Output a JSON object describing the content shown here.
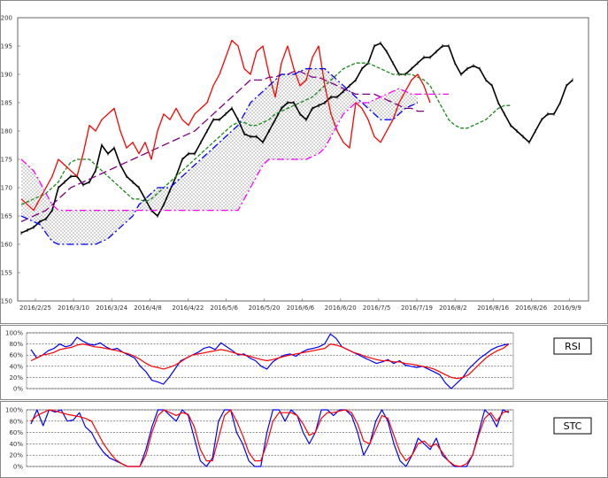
{
  "chart_data": [
    {
      "type": "line",
      "name": "ichimoku",
      "x_ticks": [
        "2016/2/25",
        "2016/3/10",
        "2016/3/24",
        "2016/4/8",
        "2016/4/22",
        "2016/5/6",
        "2016/5/20",
        "2016/6/6",
        "2016/6/20",
        "2016/7/5",
        "2016/7/19",
        "2016/8/2",
        "2016/8/16",
        "2016/8/26",
        "2016/9/9"
      ],
      "y_ticks": [
        "150",
        "155",
        "160",
        "165",
        "170",
        "175",
        "180",
        "185",
        "190",
        "195",
        "200"
      ],
      "ylim": [
        150,
        200
      ],
      "n_points": 90,
      "series": [
        {
          "key": "price",
          "color": "#000000",
          "style": "solid-markers",
          "values": [
            162,
            162.5,
            163,
            164,
            164.5,
            166,
            170,
            171,
            172,
            172,
            170.5,
            171,
            173,
            177.5,
            176,
            177,
            174,
            172,
            171,
            170,
            168,
            166,
            165,
            167,
            169.5,
            172,
            175,
            176,
            176,
            178,
            180,
            182,
            182,
            183,
            184,
            182,
            179.5,
            179,
            179,
            178,
            180,
            182,
            184,
            185,
            185,
            183,
            182,
            184,
            184.5,
            185,
            186,
            186,
            187,
            188,
            189,
            191,
            192,
            195,
            195.5,
            194,
            192,
            190,
            190,
            191,
            192,
            193,
            193,
            194,
            195,
            195,
            192,
            190,
            191,
            191.5,
            191,
            189,
            188,
            185,
            183,
            181,
            180,
            179,
            178,
            180,
            182,
            183,
            183,
            185,
            188,
            189
          ]
        },
        {
          "key": "tenkan",
          "color": "#1a8a1a",
          "style": "dashed",
          "values": [
            167,
            167.5,
            168,
            168.5,
            169,
            170,
            171,
            173,
            174.5,
            175,
            175,
            175,
            174,
            173,
            172,
            171,
            170,
            169,
            168,
            168,
            167.5,
            168,
            169,
            170,
            171,
            172,
            173,
            174,
            175,
            176,
            177,
            178,
            179,
            180,
            181,
            181.5,
            181.5,
            181,
            181,
            181.5,
            182,
            183,
            183.5,
            184,
            184.5,
            185,
            185.5,
            186,
            187,
            188,
            189,
            190,
            191,
            191.5,
            192,
            192,
            192,
            191.5,
            191,
            190.5,
            190,
            190,
            190,
            190,
            189.5,
            189,
            188,
            186,
            184,
            182,
            181,
            180.5,
            180.5,
            181,
            181.5,
            182,
            183,
            184,
            184.5,
            184.5
          ]
        },
        {
          "key": "kijun",
          "color": "#800080",
          "style": "longdash",
          "values": [
            164,
            164.5,
            165,
            165.5,
            166,
            167,
            168,
            169,
            170,
            170.5,
            171,
            171.5,
            172,
            172.5,
            173,
            173.5,
            174,
            174.5,
            175,
            175.5,
            176,
            176.5,
            177,
            177.5,
            178,
            178.5,
            179,
            179.5,
            180,
            181,
            182,
            183,
            184,
            185,
            186,
            187,
            188,
            189,
            189,
            189,
            189.5,
            189.5,
            190,
            190,
            190.5,
            190.5,
            190,
            189.5,
            189.5,
            189,
            188.5,
            188,
            187.5,
            187,
            186.5,
            186.5,
            186.5,
            186.5,
            186,
            185.5,
            185,
            184.5,
            184,
            184,
            183.5,
            183.5
          ]
        },
        {
          "key": "chikou",
          "color": "#ff0000",
          "style": "solid",
          "values": [
            168,
            167,
            166,
            168,
            170,
            172,
            175,
            174,
            173,
            172,
            176,
            181,
            180,
            182,
            183,
            184,
            180,
            177,
            178,
            176,
            178,
            175,
            180,
            183,
            182,
            184,
            182,
            181,
            183,
            184,
            185,
            188,
            190,
            193,
            196,
            195,
            191,
            190,
            194,
            195,
            190,
            186,
            192,
            195,
            191,
            188,
            189,
            193,
            195,
            188,
            183,
            180,
            178,
            177,
            185,
            184,
            182,
            179,
            178,
            180,
            182,
            185,
            187,
            189,
            190,
            188,
            185
          ]
        },
        {
          "key": "spanA",
          "color": "#ff00ff",
          "style": "dashdot",
          "values": [
            175,
            174,
            173,
            171,
            169,
            167,
            166,
            166,
            166,
            166,
            166,
            166,
            166,
            166,
            166,
            166,
            166,
            166,
            166,
            166,
            166,
            166,
            166,
            166,
            166,
            166,
            166,
            166,
            166,
            166,
            166,
            166,
            166,
            166,
            166,
            166,
            168,
            170,
            172,
            174,
            175,
            175,
            175,
            175,
            175,
            175,
            175,
            175.5,
            176,
            177,
            179,
            181,
            183,
            184,
            185,
            185,
            185,
            185.5,
            186,
            186.5,
            187,
            187.5,
            187,
            186.5,
            186.5,
            186.5,
            186.5,
            186.5,
            186.5,
            186.5
          ]
        },
        {
          "key": "spanB",
          "color": "#0000ff",
          "style": "dashdot",
          "values": [
            165,
            164.5,
            164,
            163.5,
            162,
            160.5,
            160,
            160,
            160,
            160,
            160,
            160,
            160,
            160.5,
            161,
            162,
            163,
            164,
            165,
            167,
            168,
            169,
            170,
            170,
            170,
            171,
            172,
            173,
            174,
            175,
            176,
            177,
            178,
            179,
            180,
            181,
            183,
            185,
            186,
            187,
            188,
            189,
            190,
            190,
            190,
            190.5,
            191,
            191,
            191,
            191,
            190,
            189,
            188,
            187,
            186,
            185,
            184,
            183,
            182,
            182,
            182,
            183,
            184,
            184.5,
            185
          ]
        }
      ]
    },
    {
      "type": "line",
      "name": "rsi",
      "box_label": "RSI",
      "y_ticks": [
        "100%",
        "80%",
        "60%",
        "40%",
        "20%",
        "0%"
      ],
      "ylim": [
        0,
        100
      ],
      "series": [
        {
          "key": "rsi_blue",
          "color": "#0000ff",
          "values": [
            70,
            55,
            60,
            68,
            72,
            80,
            75,
            78,
            92,
            85,
            80,
            78,
            82,
            75,
            70,
            72,
            65,
            60,
            55,
            40,
            30,
            15,
            12,
            8,
            20,
            35,
            50,
            55,
            60,
            65,
            72,
            75,
            70,
            82,
            75,
            68,
            60,
            62,
            55,
            50,
            40,
            35,
            48,
            55,
            60,
            62,
            58,
            65,
            70,
            72,
            75,
            80,
            98,
            90,
            75,
            70,
            65,
            60,
            55,
            50,
            45,
            48,
            52,
            45,
            50,
            42,
            40,
            38,
            40,
            35,
            30,
            25,
            10,
            0,
            10,
            20,
            35,
            45,
            55,
            62,
            70,
            75,
            78,
            80
          ]
        },
        {
          "key": "rsi_red",
          "color": "#ff0000",
          "values": [
            50,
            55,
            60,
            62,
            65,
            70,
            72,
            74,
            78,
            80,
            78,
            75,
            74,
            72,
            70,
            68,
            65,
            62,
            58,
            52,
            45,
            40,
            38,
            35,
            38,
            42,
            48,
            55,
            60,
            62,
            64,
            66,
            68,
            70,
            68,
            65,
            62,
            60,
            58,
            55,
            52,
            50,
            52,
            55,
            58,
            60,
            62,
            64,
            66,
            68,
            70,
            72,
            80,
            78,
            75,
            70,
            65,
            62,
            58,
            55,
            52,
            50,
            50,
            48,
            48,
            45,
            44,
            42,
            40,
            38,
            35,
            30,
            25,
            20,
            18,
            20,
            25,
            35,
            45,
            55,
            62,
            68,
            72,
            80
          ]
        }
      ]
    },
    {
      "type": "line",
      "name": "stc",
      "box_label": "STC",
      "y_ticks": [
        "100%",
        "80%",
        "60%",
        "40%",
        "20%",
        "0%"
      ],
      "ylim": [
        0,
        100
      ],
      "series": [
        {
          "key": "stc_blue",
          "color": "#0000ff",
          "values": [
            75,
            100,
            72,
            100,
            96,
            100,
            80,
            82,
            95,
            70,
            60,
            40,
            25,
            15,
            10,
            5,
            0,
            0,
            0,
            30,
            70,
            100,
            100,
            90,
            80,
            100,
            90,
            50,
            10,
            0,
            15,
            80,
            100,
            100,
            60,
            40,
            10,
            0,
            0,
            60,
            100,
            100,
            80,
            100,
            90,
            60,
            40,
            60,
            100,
            100,
            90,
            100,
            100,
            90,
            60,
            20,
            40,
            80,
            100,
            80,
            40,
            10,
            0,
            20,
            50,
            40,
            30,
            50,
            20,
            10,
            0,
            0,
            0,
            20,
            60,
            100,
            90,
            70,
            100,
            95
          ]
        },
        {
          "key": "stc_red",
          "color": "#ff0000",
          "values": [
            80,
            90,
            95,
            100,
            98,
            95,
            92,
            90,
            88,
            85,
            80,
            60,
            40,
            25,
            12,
            5,
            0,
            0,
            0,
            20,
            60,
            90,
            100,
            95,
            90,
            95,
            92,
            70,
            30,
            10,
            10,
            50,
            90,
            100,
            80,
            55,
            25,
            10,
            10,
            40,
            80,
            95,
            95,
            95,
            90,
            75,
            55,
            60,
            85,
            95,
            95,
            98,
            100,
            95,
            75,
            45,
            40,
            65,
            90,
            85,
            55,
            25,
            10,
            20,
            40,
            45,
            35,
            40,
            25,
            10,
            2,
            0,
            5,
            20,
            55,
            85,
            95,
            80,
            95,
            98
          ]
        }
      ]
    }
  ]
}
